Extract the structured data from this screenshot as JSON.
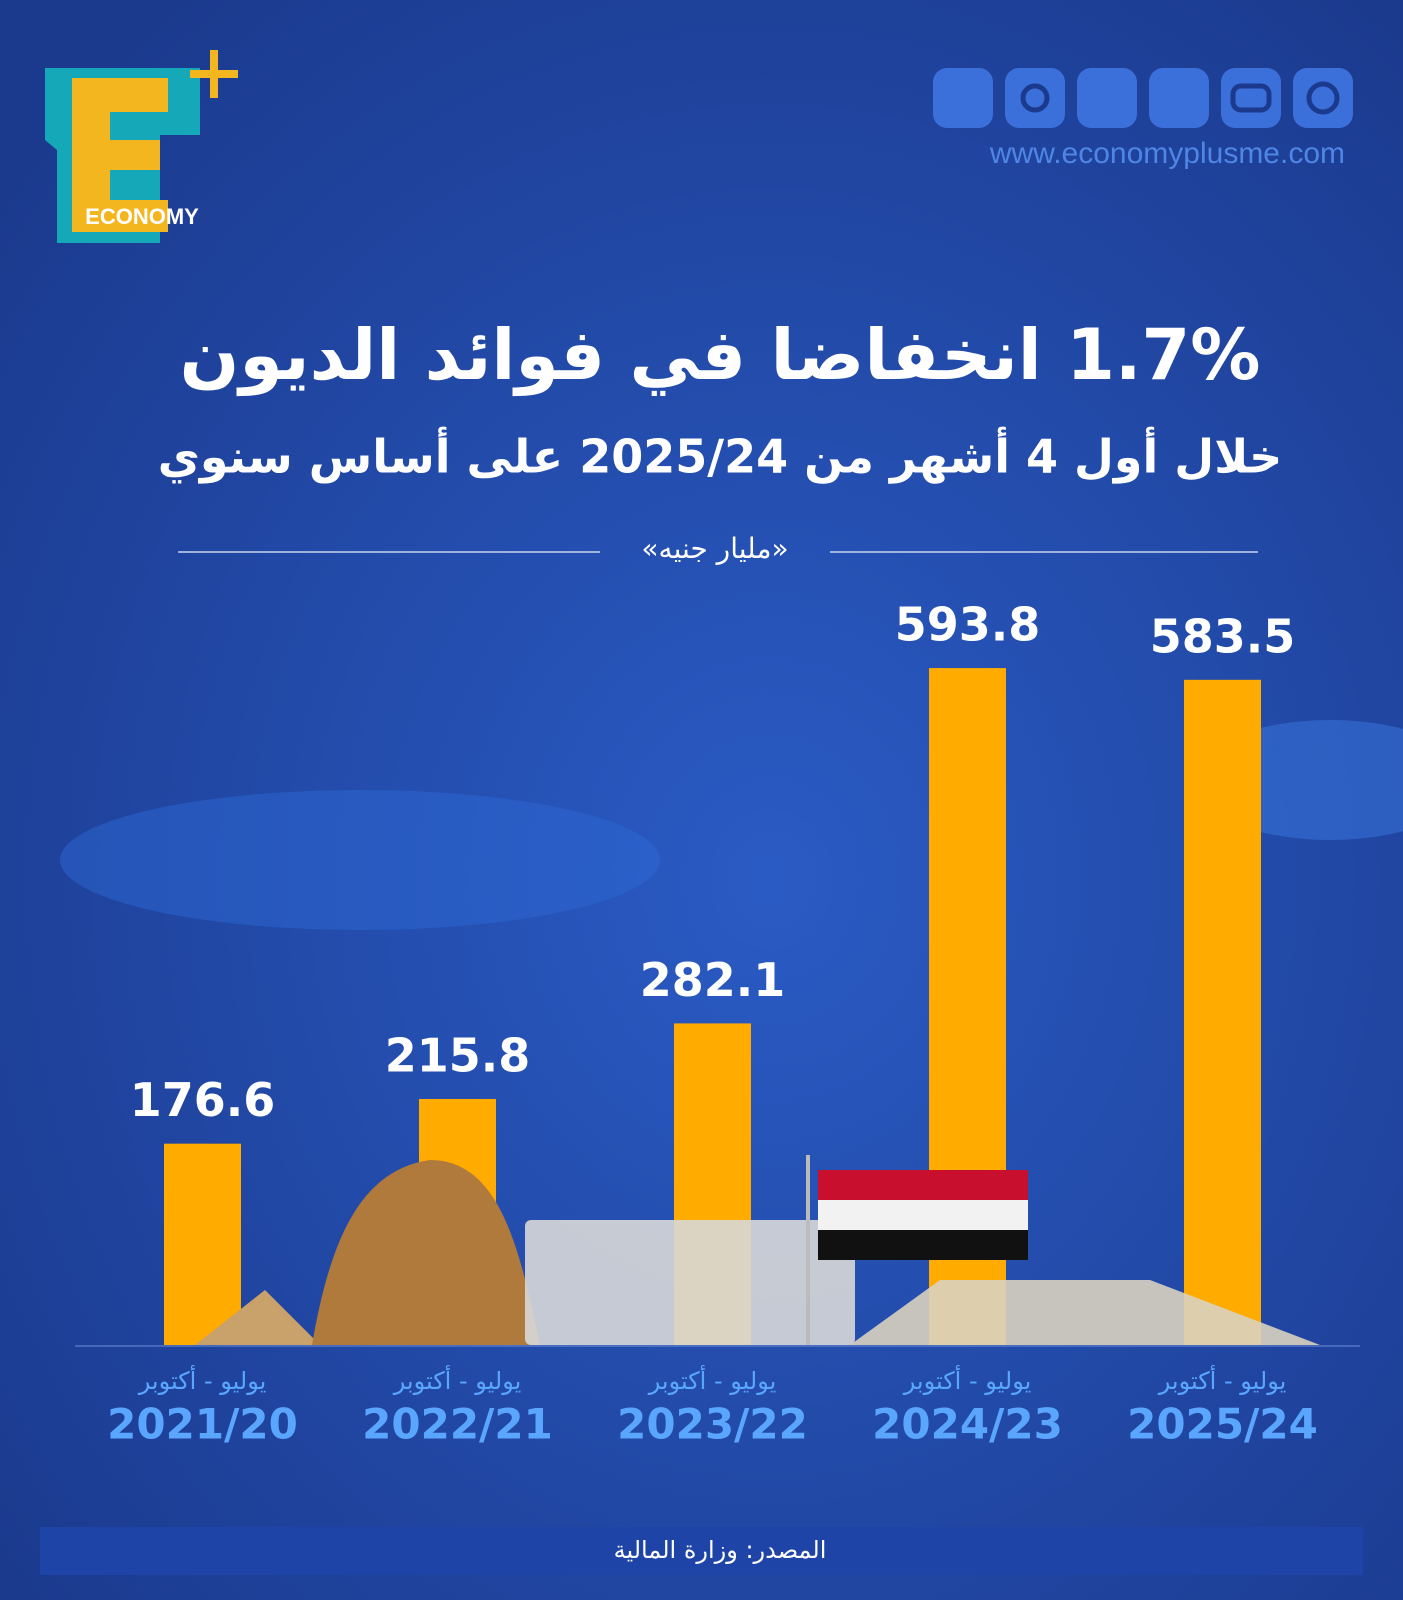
{
  "logo_text": "ECONOMY",
  "website": "www.economyplusme.com",
  "source": "المصدر: وزارة المالية",
  "chart_data": {
    "type": "bar",
    "title": "1.7% انخفاضا في فوائد الديون",
    "subtitle": "خلال أول 4 أشهر من 2025/24 على أساس سنوي",
    "unit_label": "«مليار جنيه»",
    "categories": [
      "2021/20",
      "2022/21",
      "2023/22",
      "2024/23",
      "2025/24"
    ],
    "category_periods": [
      "يوليو - أكتوبر",
      "يوليو - أكتوبر",
      "يوليو - أكتوبر",
      "يوليو - أكتوبر",
      "يوليو - أكتوبر"
    ],
    "values": [
      176.6,
      215.8,
      282.1,
      593.8,
      583.5
    ],
    "color": "#ffab00",
    "ylim": [
      0,
      600
    ]
  }
}
